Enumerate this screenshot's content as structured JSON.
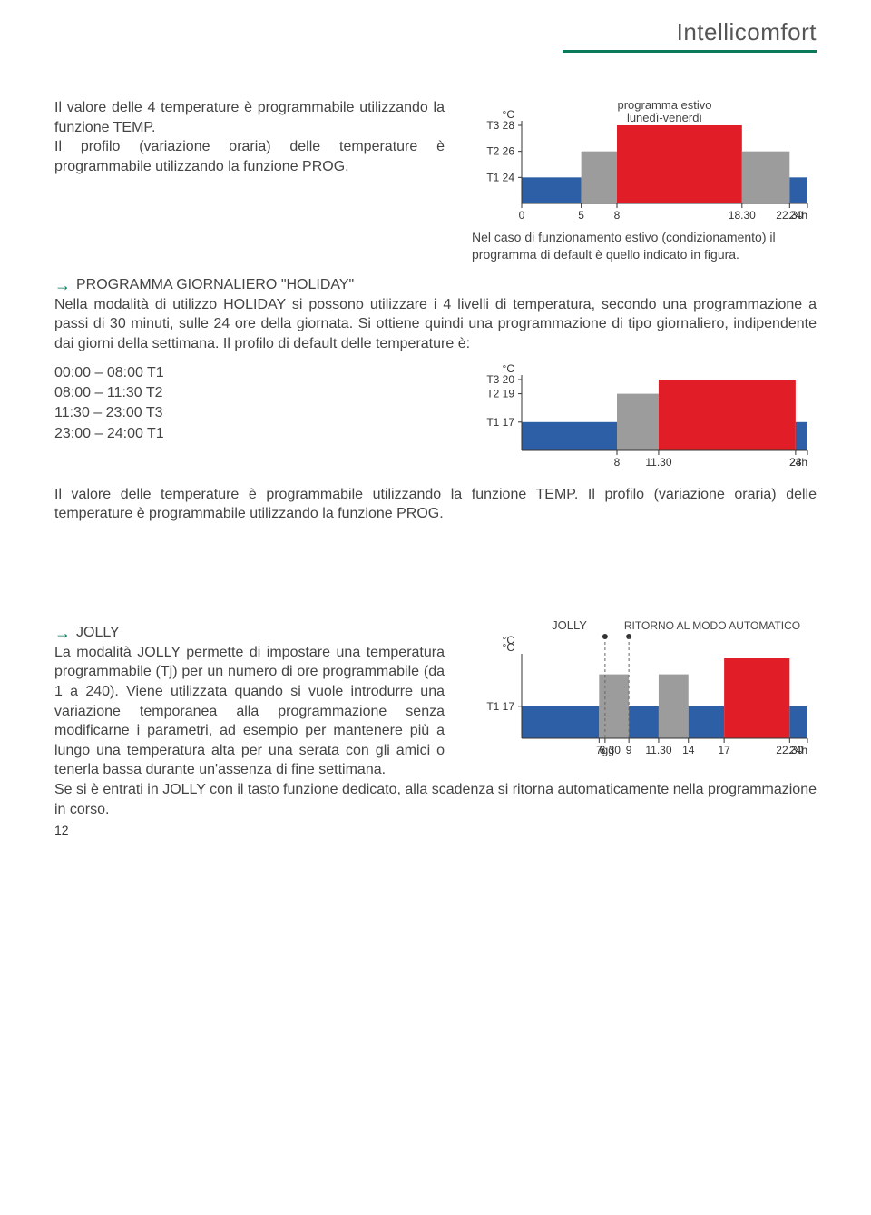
{
  "header": {
    "title": "Intellicomfort"
  },
  "section1": {
    "para1": "Il valore delle 4 temperature è programmabile utilizzando la funzione TEMP.",
    "para2": "Il profilo (variazione oraria) delle temperature è programmabile utilizzando la funzione PROG."
  },
  "chart1": {
    "title_line1": "programma estivo",
    "title_line2": "lunedì-venerdì",
    "y_unit": "°C",
    "y_labels": [
      "T3 28",
      "T2 26",
      "T1 24"
    ],
    "x_labels": [
      "0",
      "5",
      "8",
      "18.30",
      "22.30",
      "24h"
    ],
    "caption": "Nel caso di funzionamento estivo (condizionamento) il programma di default è quello indicato in figura.",
    "colors": {
      "blue": "#2c5fa5",
      "grey": "#9c9c9c",
      "red": "#e11e27",
      "axis": "#333333"
    },
    "bars": [
      {
        "x": 0,
        "w": 5,
        "h": 24,
        "color": "blue"
      },
      {
        "x": 5,
        "w": 3,
        "h": 26,
        "color": "grey"
      },
      {
        "x": 8,
        "w": 10.5,
        "h": 28,
        "color": "red"
      },
      {
        "x": 18.5,
        "w": 4,
        "h": 26,
        "color": "grey"
      },
      {
        "x": 22.5,
        "w": 1.5,
        "h": 24,
        "color": "blue"
      }
    ],
    "y_range": [
      22,
      28
    ],
    "x_range": [
      0,
      24
    ]
  },
  "section2": {
    "title": "PROGRAMMA GIORNALIERO \"HOLIDAY\"",
    "para": "Nella modalità di utilizzo HOLIDAY si possono utilizzare i 4 livelli di temperatura, secondo una programmazione a passi di 30 minuti, sulle 24 ore della giornata. Si ottiene quindi una programmazione di tipo giornaliero, indipendente dai giorni della settimana. Il profilo di default delle temperature è:",
    "schedule": [
      "00:00 – 08:00 T1",
      "08:00 – 11:30 T2",
      "11:30 – 23:00 T3",
      "23:00 – 24:00 T1"
    ],
    "para2": "Il valore delle  temperature è programmabile utilizzando la funzione TEMP. Il profilo (variazione oraria) delle temperature è programmabile utilizzando la funzione PROG."
  },
  "chart2": {
    "y_unit": "°C",
    "y_labels": [
      "T3 20",
      "T2 19",
      "T1 17"
    ],
    "x_labels": [
      "8",
      "11.30",
      "23",
      "24h"
    ],
    "colors": {
      "blue": "#2c5fa5",
      "grey": "#9c9c9c",
      "red": "#e11e27",
      "axis": "#333333"
    },
    "bars": [
      {
        "x": 0,
        "w": 8,
        "h": 17,
        "color": "blue"
      },
      {
        "x": 8,
        "w": 3.5,
        "h": 19,
        "color": "grey"
      },
      {
        "x": 11.5,
        "w": 11.5,
        "h": 20,
        "color": "red"
      },
      {
        "x": 23,
        "w": 1,
        "h": 17,
        "color": "blue"
      }
    ],
    "y_range": [
      15,
      20
    ],
    "x_range": [
      0,
      24
    ]
  },
  "section3": {
    "title": "JOLLY",
    "para": "La modalità JOLLY permette di impostare una temperatura programmabile (Tj) per un numero di ore programmabile (da 1 a 240). Viene utilizzata quando si vuole introdurre una variazione temporanea alla programmazione senza modificarne i parametri, ad esempio per mantenere più a lungo una temperatura alta per una serata con gli amici o tenerla bassa durante un'assenza di fine settimana.",
    "para2": "Se si è entrati in JOLLY con il tasto funzione dedicato, alla scadenza si ritorna automaticamente nella programmazione in corso."
  },
  "chart3": {
    "y_unit": "°C",
    "label_jolly": "JOLLY",
    "label_auto": "RITORNO AL MODO AUTOMATICO",
    "y_labels": [
      "T1 17"
    ],
    "x_labels": [
      "7gg",
      "6.30",
      "9",
      "11.30",
      "14",
      "17",
      "22.30",
      "24h"
    ],
    "colors": {
      "blue": "#2c5fa5",
      "grey": "#9c9c9c",
      "red": "#e11e27",
      "axis": "#333333",
      "dash": "#666666"
    },
    "bars": [
      {
        "x": 0,
        "w": 6.5,
        "h": 17,
        "color": "blue"
      },
      {
        "x": 6.5,
        "w": 2.5,
        "h": 19,
        "color": "grey"
      },
      {
        "x": 9,
        "w": 2.5,
        "h": 17,
        "color": "blue"
      },
      {
        "x": 11.5,
        "w": 2.5,
        "h": 19,
        "color": "grey"
      },
      {
        "x": 14,
        "w": 3,
        "h": 17,
        "color": "blue"
      },
      {
        "x": 17,
        "w": 5.5,
        "h": 20,
        "color": "red"
      },
      {
        "x": 22.5,
        "w": 1.5,
        "h": 17,
        "color": "blue"
      }
    ],
    "y_range": [
      15,
      20
    ],
    "x_range": [
      0,
      24
    ],
    "jolly_marker_x": 7,
    "auto_marker_x": 9
  },
  "page_number": "12"
}
